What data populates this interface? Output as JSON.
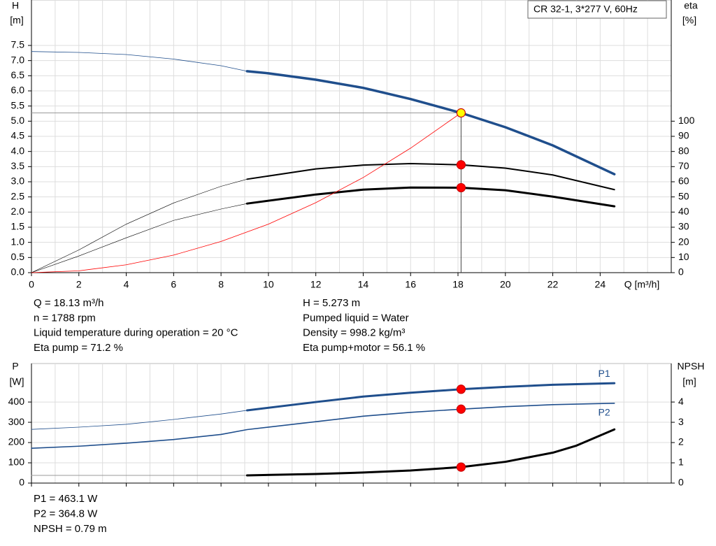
{
  "chart_data": [
    {
      "type": "line",
      "legend_box": "CR 32-1, 3*277 V, 60Hz",
      "y_label": "H",
      "y_unit": "[m]",
      "y2_label": "eta",
      "y2_unit": "[%]",
      "x_label": "Q [m³/h]",
      "xlim": [
        0,
        27
      ],
      "xticks": [
        0,
        2,
        4,
        6,
        8,
        10,
        12,
        14,
        16,
        18,
        20,
        22,
        24
      ],
      "ylim": [
        0,
        9
      ],
      "yticks": [
        {
          "value": 0,
          "label": "0.0"
        },
        0.5,
        {
          "value": 1,
          "label": "1.0"
        },
        1.5,
        {
          "value": 2,
          "label": "2.0"
        },
        2.5,
        {
          "value": 3,
          "label": "3.0"
        },
        3.5,
        {
          "value": 4,
          "label": "4.0"
        },
        4.5,
        {
          "value": 5,
          "label": "5.0"
        },
        5.5,
        {
          "value": 6,
          "label": "6.0"
        },
        6.5,
        {
          "value": 7,
          "label": "7.0"
        },
        7.5
      ],
      "y2lim": [
        0,
        180
      ],
      "y2ticks": [
        0,
        10,
        20,
        30,
        40,
        50,
        60,
        70,
        80,
        90,
        100
      ],
      "grid": true,
      "minor_grid": true,
      "crosshair": true,
      "series": [
        {
          "color": "#1f4e8c",
          "width": 0.8,
          "x": [
            0,
            2,
            4,
            6,
            8,
            9.1
          ],
          "values": [
            7.3,
            7.27,
            7.2,
            7.05,
            6.83,
            6.65
          ]
        },
        {
          "color": "#1f4e8c",
          "width": 3.5,
          "x": [
            9.1,
            10,
            12,
            14,
            16,
            18.13,
            20,
            22,
            24.6
          ],
          "values": [
            6.65,
            6.58,
            6.37,
            6.1,
            5.73,
            5.273,
            4.8,
            4.2,
            3.25
          ]
        },
        {
          "color": "#000000",
          "width": 0.6,
          "axis": "y2",
          "x": [
            0,
            2,
            4,
            6,
            8,
            9.1
          ],
          "values": [
            0,
            15,
            32,
            46,
            57,
            61.7
          ]
        },
        {
          "color": "#000000",
          "width": 2,
          "axis": "y2",
          "x": [
            9.1,
            12,
            14,
            16,
            18.13,
            20,
            22,
            24.6
          ],
          "values": [
            61.7,
            68.5,
            71,
            72,
            71.2,
            69,
            64.5,
            54.8
          ]
        },
        {
          "color": "#000000",
          "width": 0.6,
          "axis": "y2",
          "x": [
            0,
            2,
            4,
            6,
            8,
            9.1
          ],
          "values": [
            0,
            11,
            23,
            34.5,
            42,
            45.6
          ]
        },
        {
          "color": "#000000",
          "width": 3,
          "axis": "y2",
          "x": [
            9.1,
            12,
            14,
            16,
            18.13,
            20,
            22,
            24.6
          ],
          "values": [
            45.6,
            51.6,
            54.8,
            56.2,
            56.1,
            54.4,
            50.2,
            43.8
          ]
        },
        {
          "color": "#ff0000",
          "width": 0.8,
          "x": [
            0,
            2,
            4,
            6,
            8,
            10,
            12,
            14,
            16,
            18.13
          ],
          "values": [
            0,
            0.06,
            0.26,
            0.58,
            1.03,
            1.6,
            2.31,
            3.14,
            4.11,
            5.273
          ]
        }
      ],
      "points": [
        {
          "x": 18.13,
          "value": 5.273,
          "fill": "#ffff00"
        },
        {
          "x": 18.13,
          "value": 71.2,
          "axis": "y2",
          "fill": "#ff0000"
        },
        {
          "x": 18.13,
          "value": 56.1,
          "axis": "y2",
          "fill": "#ff0000"
        }
      ]
    },
    {
      "type": "line",
      "y_label": "P",
      "y_unit": "[W]",
      "y2_label": "NPSH",
      "y2_unit": "[m]",
      "xlim": [
        0,
        27
      ],
      "xticks": [
        0,
        2,
        4,
        6,
        8,
        10,
        12,
        14,
        16,
        18,
        20,
        22,
        24
      ],
      "xtick_labels": false,
      "ylim": [
        0,
        590
      ],
      "yticks": [
        0,
        100,
        200,
        300,
        400
      ],
      "y2lim": [
        0,
        5.9
      ],
      "y2ticks": [
        0,
        1,
        2,
        3,
        4
      ],
      "grid": true,
      "minor_grid": true,
      "series": [
        {
          "color": "#1f4e8c",
          "width": 0.8,
          "x": [
            0,
            2,
            4,
            6,
            8,
            9.1
          ],
          "values": [
            265,
            276,
            290,
            314,
            341,
            359
          ]
        },
        {
          "name": "P1",
          "color": "#1f4e8c",
          "width": 3,
          "x": [
            9.1,
            12,
            14,
            16,
            18.13,
            20,
            22,
            24.6
          ],
          "values": [
            359,
            400,
            427,
            446,
            463.1,
            475,
            485,
            493
          ]
        },
        {
          "name": "P2",
          "color": "#1f4e8c",
          "width": 1.6,
          "x": [
            0,
            2,
            4,
            6,
            8,
            9.1,
            12,
            14,
            16,
            18.13,
            20,
            22,
            24.6
          ],
          "values": [
            172,
            182,
            197,
            215,
            240,
            264,
            303,
            330,
            349,
            364.8,
            377,
            387,
            394
          ]
        },
        {
          "color": "#999999",
          "width": 1,
          "axis": "y2",
          "x": [
            0,
            9.1
          ],
          "values": [
            0.38,
            0.38
          ]
        },
        {
          "color": "#000000",
          "width": 3,
          "axis": "y2",
          "x": [
            9.1,
            12,
            14,
            16,
            18.13,
            20,
            22,
            23,
            24.6
          ],
          "values": [
            0.38,
            0.45,
            0.52,
            0.62,
            0.79,
            1.05,
            1.5,
            1.85,
            2.65
          ]
        }
      ],
      "points": [
        {
          "x": 18.13,
          "value": 463.1,
          "fill": "#ff0000"
        },
        {
          "x": 18.13,
          "value": 364.8,
          "fill": "#ff0000"
        },
        {
          "x": 18.13,
          "value": 0.79,
          "axis": "y2",
          "fill": "#ff0000"
        }
      ]
    }
  ],
  "info": {
    "left": [
      "Q = 18.13 m³/h",
      "n = 1788 rpm",
      "Liquid temperature during operation = 20 °C",
      "Eta pump = 71.2 %"
    ],
    "right": [
      "H = 5.273 m",
      "Pumped liquid = Water",
      "Density = 998.2 kg/m³",
      "Eta pump+motor = 56.1 %"
    ],
    "bottom": [
      "P1 = 463.1 W",
      "P2 = 364.8 W",
      "NPSH = 0.79 m"
    ]
  }
}
